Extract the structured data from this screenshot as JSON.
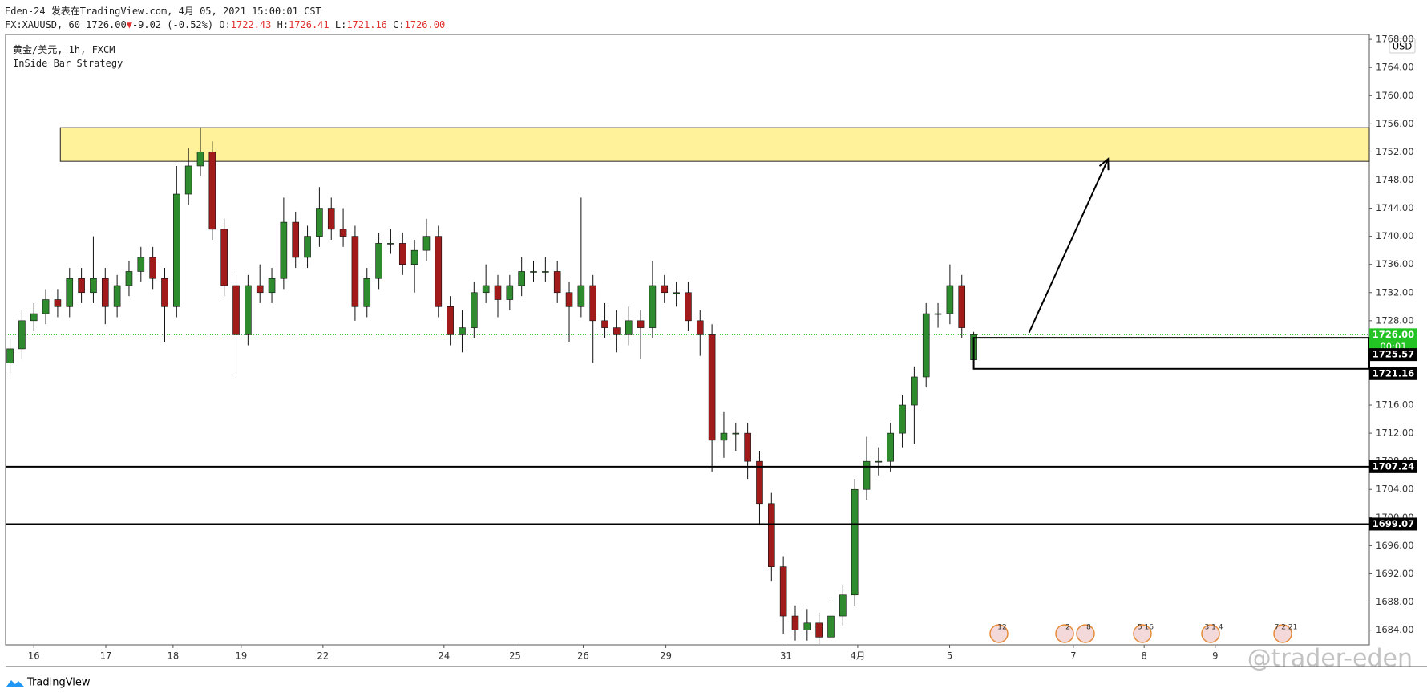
{
  "header": {
    "author_line": "Eden-24 发表在TradingView.com, 4月 05, 2021 15:00:01 CST",
    "symbol": "FX:XAUUSD, 60 1726.00",
    "arrow": "▼",
    "change": "-9.02 (-0.52%)",
    "o_label": "O:",
    "o": "1722.43",
    "h_label": "H:",
    "h": "1726.41",
    "l_label": "L:",
    "l": "1721.16",
    "c_label": "C:",
    "c": "1726.00",
    "legend_title": "黄金/美元, 1h, FXCM",
    "strategy": "InSide Bar Strategy",
    "currency": "USD",
    "brand": "TradingView",
    "watermark": "@trader-eden",
    "events": [
      "12",
      "2",
      "8",
      "5 16",
      "3 1 4",
      "7 2 21"
    ]
  },
  "chart_data": {
    "type": "candlestick",
    "grid": false,
    "up_color": "#2e8b2e",
    "down_color": "#a11b1b",
    "x": [
      -8,
      -4,
      0,
      4,
      8,
      12,
      16,
      20,
      24,
      28,
      32,
      36,
      40,
      44,
      48,
      52,
      56,
      60,
      64,
      68,
      72,
      76,
      80,
      84,
      88,
      92,
      96,
      100,
      104,
      108,
      112,
      116,
      120,
      124,
      128,
      132,
      136,
      140,
      144,
      148,
      152,
      156,
      160,
      164,
      168,
      172,
      176,
      180,
      184,
      188,
      192,
      196,
      200,
      204,
      208,
      212,
      216,
      220,
      224,
      228,
      232,
      236,
      240,
      244,
      248,
      252,
      256,
      260,
      264,
      268,
      272,
      276,
      280,
      284,
      288,
      292,
      296,
      300,
      304,
      308,
      312,
      316
    ],
    "open": [
      1722,
      1724,
      1728,
      1729,
      1731,
      1730,
      1734,
      1732,
      1734,
      1730,
      1733,
      1735,
      1737,
      1734,
      1730,
      1746,
      1750,
      1752,
      1741,
      1733,
      1726,
      1733,
      1732,
      1734,
      1742,
      1737,
      1740,
      1744,
      1741,
      1740,
      1730,
      1734,
      1739,
      1739,
      1736,
      1738,
      1740,
      1730,
      1726,
      1727,
      1732,
      1733,
      1731,
      1733,
      1735,
      1735,
      1735,
      1732,
      1730,
      1733,
      1728,
      1727,
      1726,
      1728,
      1727,
      1733,
      1732,
      1732,
      1728,
      1726,
      1711,
      1712,
      1712,
      1708,
      1702,
      1693,
      1686,
      1684,
      1685,
      1683,
      1686,
      1689,
      1704,
      1708,
      1708,
      1712,
      1716,
      1720,
      1729,
      1729,
      1733,
      1722.43
    ],
    "high": [
      1725.5,
      1729.5,
      1730.5,
      1732.5,
      1732.5,
      1735.5,
      1735.5,
      1740,
      1735.5,
      1734.5,
      1736.5,
      1738.5,
      1738.5,
      1735.5,
      1750,
      1752.5,
      1755.5,
      1753.5,
      1742.5,
      1734.5,
      1734.5,
      1736,
      1735.5,
      1745.5,
      1743.5,
      1741.5,
      1747,
      1745.5,
      1744,
      1741.5,
      1735.5,
      1740.5,
      1741,
      1740.5,
      1739.5,
      1742.5,
      1741.5,
      1731.5,
      1729.5,
      1733.5,
      1736,
      1734.5,
      1734.5,
      1737,
      1736.5,
      1737,
      1736.5,
      1733.5,
      1745.5,
      1734.5,
      1730.5,
      1729.5,
      1730,
      1729.5,
      1736.5,
      1734.5,
      1733.5,
      1733.5,
      1729.5,
      1727.5,
      1715,
      1713.5,
      1713.5,
      1709.5,
      1703.5,
      1694.5,
      1687.5,
      1687,
      1686.5,
      1688.5,
      1690.5,
      1705.5,
      1711.5,
      1710,
      1713.5,
      1717.5,
      1721.5,
      1730.5,
      1730.5,
      1736,
      1734.5,
      1726.41
    ],
    "low": [
      1720.5,
      1722.5,
      1726.5,
      1727.5,
      1728.5,
      1728.5,
      1730.5,
      1730.5,
      1727.5,
      1728.5,
      1731.5,
      1733.5,
      1732.5,
      1725,
      1728.5,
      1744.5,
      1748.5,
      1739.5,
      1731.5,
      1720,
      1724.5,
      1730.5,
      1730.5,
      1732.5,
      1735.5,
      1735.5,
      1738.5,
      1739.5,
      1738.5,
      1728,
      1728.5,
      1732.5,
      1737.5,
      1734.5,
      1732,
      1736.5,
      1728.5,
      1724.5,
      1723.5,
      1725.5,
      1730.5,
      1728.5,
      1729.5,
      1731.5,
      1733.5,
      1733.5,
      1730.5,
      1725,
      1728.5,
      1722,
      1725.5,
      1723.5,
      1724.5,
      1722.5,
      1725.5,
      1730.5,
      1730,
      1726.5,
      1723,
      1706.5,
      1708.5,
      1709.5,
      1705.5,
      1699,
      1691,
      1683.5,
      1682.5,
      1682.5,
      1682,
      1682.5,
      1684.5,
      1687.5,
      1702.5,
      1706,
      1706.5,
      1710,
      1710.5,
      1718.5,
      1727,
      1727.5,
      1725.5,
      1721.16
    ],
    "close": [
      1724,
      1728,
      1729,
      1731,
      1730,
      1734,
      1732,
      1734,
      1730,
      1733,
      1735,
      1737,
      1734,
      1730,
      1746,
      1750,
      1752,
      1741,
      1733,
      1726,
      1733,
      1732,
      1734,
      1742,
      1737,
      1740,
      1744,
      1741,
      1740,
      1730,
      1734,
      1739,
      1739,
      1736,
      1738,
      1740,
      1730,
      1726,
      1727,
      1732,
      1733,
      1731,
      1733,
      1735,
      1735,
      1735,
      1732,
      1730,
      1733,
      1728,
      1727,
      1726,
      1728,
      1727,
      1733,
      1732,
      1732,
      1728,
      1726,
      1711,
      1712,
      1712,
      1708,
      1702,
      1693,
      1686,
      1684,
      1685,
      1683,
      1686,
      1689,
      1704,
      1708,
      1708,
      1712,
      1716,
      1720,
      1729,
      1729,
      1733,
      1727,
      1726
    ],
    "xlim": [
      -9.5,
      449
    ],
    "ylim": [
      1681.9,
      1768.7
    ],
    "xticks": [
      {
        "value": 0,
        "label": "16"
      },
      {
        "value": 24.2,
        "label": "17"
      },
      {
        "value": 46.8,
        "label": "18"
      },
      {
        "value": 69.7,
        "label": "19"
      },
      {
        "value": 97.2,
        "label": "22"
      },
      {
        "value": 137.9,
        "label": "24"
      },
      {
        "value": 161.8,
        "label": "25"
      },
      {
        "value": 184.7,
        "label": "26"
      },
      {
        "value": 212.5,
        "label": "29"
      },
      {
        "value": 252.9,
        "label": "31"
      },
      {
        "value": 277,
        "label": "4月"
      },
      {
        "value": 307.9,
        "label": "5"
      },
      {
        "value": 349.5,
        "label": "7"
      },
      {
        "value": 373.3,
        "label": "8"
      },
      {
        "value": 397.2,
        "label": "9"
      }
    ],
    "yticks": [
      {
        "value": 1684,
        "label": "1684.00"
      },
      {
        "value": 1688,
        "label": "1688.00"
      },
      {
        "value": 1692,
        "label": "1692.00"
      },
      {
        "value": 1696,
        "label": "1696.00"
      },
      {
        "value": 1700,
        "label": "1700.00"
      },
      {
        "value": 1704,
        "label": "1704.00"
      },
      {
        "value": 1708,
        "label": "1708.00"
      },
      {
        "value": 1712,
        "label": "1712.00"
      },
      {
        "value": 1716,
        "label": "1716.00"
      },
      {
        "value": 1720,
        "label": "1720.00"
      },
      {
        "value": 1724,
        "label": "1724.00"
      },
      {
        "value": 1728,
        "label": "1728.00"
      },
      {
        "value": 1732,
        "label": "1732.00"
      },
      {
        "value": 1736,
        "label": "1736.00"
      },
      {
        "value": 1740,
        "label": "1740.00"
      },
      {
        "value": 1744,
        "label": "1744.00"
      },
      {
        "value": 1748,
        "label": "1748.00"
      },
      {
        "value": 1752,
        "label": "1752.00"
      },
      {
        "value": 1756,
        "label": "1756.00"
      },
      {
        "value": 1760,
        "label": "1760.00"
      },
      {
        "value": 1764,
        "label": "1764.00"
      },
      {
        "value": 1768,
        "label": "1768.00"
      }
    ],
    "zone": {
      "x": 8.9,
      "low": 1750.66,
      "high": 1755.45,
      "color": "#fff29a"
    },
    "levels": [
      1707.24,
      1699.07
    ],
    "box": {
      "x": 316,
      "low": 1721.16,
      "high": 1725.57
    },
    "arrow": {
      "x1": 334.6,
      "y1": 1726.3,
      "x2": 361.2,
      "y2": 1751
    },
    "last_price": {
      "value": 1726,
      "label": "1726.00",
      "countdown": "00:01",
      "color": "#22c322"
    }
  }
}
